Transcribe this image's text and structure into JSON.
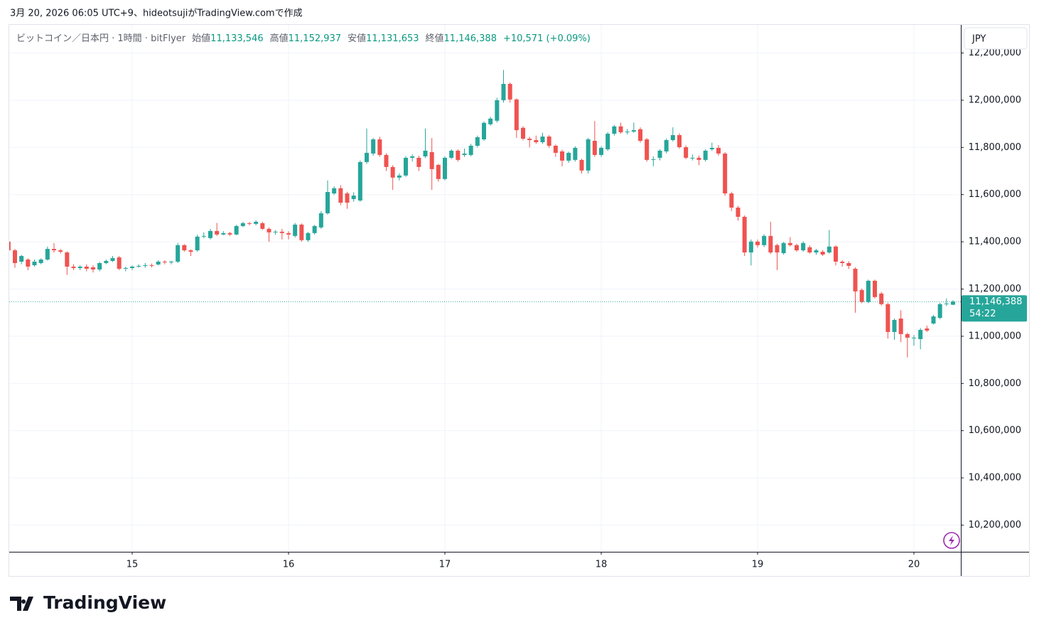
{
  "header": {
    "caption": "3月 20, 2026 06:05 UTC+9、hideotsujiがTradingView.comで作成"
  },
  "footer": {
    "logo": "TradingView"
  },
  "chart_data": {
    "type": "candlestick",
    "symbol": "ビットコイン／日本円 · 1時間 · bitFlyer",
    "legend": [
      {
        "label": "始値",
        "value": "11,133,546"
      },
      {
        "label": "高値",
        "value": "11,152,937"
      },
      {
        "label": "安値",
        "value": "11,131,653"
      },
      {
        "label": "終値",
        "value": "11,146,388"
      }
    ],
    "change": "+10,571 (+0.09%)",
    "currency": "JPY",
    "current_price_label": "11,146,388",
    "countdown": "54:22",
    "up_color": "#26a69a",
    "down_color": "#ef5350",
    "grid": true,
    "ylim": [
      10087000,
      12319000
    ],
    "yticks": [
      {
        "value": 10200000,
        "label": "10,200,000"
      },
      {
        "value": 10400000,
        "label": "10,400,000"
      },
      {
        "value": 10600000,
        "label": "10,600,000"
      },
      {
        "value": 10800000,
        "label": "10,800,000"
      },
      {
        "value": 11000000,
        "label": "11,000,000"
      },
      {
        "value": 11200000,
        "label": "11,200,000"
      },
      {
        "value": 11400000,
        "label": "11,400,000"
      },
      {
        "value": 11600000,
        "label": "11,600,000"
      },
      {
        "value": 11800000,
        "label": "11,800,000"
      },
      {
        "value": 12000000,
        "label": "12,000,000"
      },
      {
        "value": 12200000,
        "label": "12,200,000"
      }
    ],
    "categories": [
      null,
      null,
      null,
      null,
      null,
      null,
      null,
      null,
      null,
      null,
      null,
      null,
      null,
      null,
      null,
      null,
      null,
      null,
      null,
      "15",
      null,
      null,
      null,
      null,
      null,
      null,
      null,
      null,
      null,
      null,
      null,
      null,
      null,
      null,
      null,
      null,
      null,
      null,
      null,
      null,
      null,
      null,
      null,
      "16",
      null,
      null,
      null,
      null,
      null,
      null,
      null,
      null,
      null,
      null,
      null,
      null,
      null,
      null,
      null,
      null,
      null,
      null,
      null,
      null,
      null,
      null,
      null,
      "17",
      null,
      null,
      null,
      null,
      null,
      null,
      null,
      null,
      null,
      null,
      null,
      null,
      null,
      null,
      null,
      null,
      null,
      null,
      null,
      null,
      null,
      null,
      null,
      "18",
      null,
      null,
      null,
      null,
      null,
      null,
      null,
      null,
      null,
      null,
      null,
      null,
      null,
      null,
      null,
      null,
      null,
      null,
      null,
      null,
      null,
      null,
      null,
      "19",
      null,
      null,
      null,
      null,
      null,
      null,
      null,
      null,
      null,
      null,
      null,
      null,
      null,
      null,
      null,
      null,
      null,
      null,
      null,
      null,
      null,
      null,
      null,
      "20",
      null,
      null,
      null,
      null,
      null,
      null
    ],
    "open": [
      11401000,
      11364000,
      11316000,
      11325000,
      11301000,
      11310000,
      11325000,
      11370000,
      11364000,
      11355000,
      11295000,
      11289000,
      11295000,
      11292000,
      11283000,
      11310000,
      11319000,
      11334000,
      11286000,
      11289000,
      11295000,
      11298000,
      11301000,
      11304000,
      11316000,
      11313000,
      11316000,
      11386000,
      11364000,
      11364000,
      11422000,
      11416000,
      11446000,
      11431000,
      11437000,
      11431000,
      11467000,
      11479000,
      11476000,
      11479000,
      11455000,
      11440000,
      11443000,
      11437000,
      11425000,
      11473000,
      11407000,
      11437000,
      11461000,
      11521000,
      11605000,
      11627000,
      11605000,
      11581000,
      11575000,
      11738000,
      11774000,
      11834000,
      11768000,
      11717000,
      11672000,
      11681000,
      11756000,
      11756000,
      11762000,
      11780000,
      11726000,
      11666000,
      11756000,
      11786000,
      11768000,
      11768000,
      11807000,
      11834000,
      11898000,
      11913000,
      12000000,
      12069000,
      12003000,
      11883000,
      11837000,
      11831000,
      11822000,
      11846000,
      11807000,
      11783000,
      11744000,
      11747000,
      11747000,
      11702000,
      11828000,
      11768000,
      11792000,
      11858000,
      11889000,
      11864000,
      11867000,
      11877000,
      11834000,
      11750000,
      11756000,
      11783000,
      11831000,
      11852000,
      11801000,
      11756000,
      11756000,
      11747000,
      11792000,
      11798000,
      11774000,
      11605000,
      11545000,
      11506000,
      11355000,
      11401000,
      11386000,
      11425000,
      11386000,
      11352000,
      11395000,
      11386000,
      11364000,
      11377000,
      11355000,
      11358000,
      11355000,
      11380000,
      11316000,
      11310000,
      11286000,
      11196000,
      11145000,
      11235000,
      11181000,
      11136000,
      11018000,
      11075000,
      11009000,
      10994000,
      10988000,
      11033000,
      11054000,
      11078000,
      11136000,
      11133546
    ],
    "high": [
      11410000,
      11370000,
      11345000,
      11330000,
      11325000,
      11330000,
      11380000,
      11395000,
      11370000,
      11360000,
      11305000,
      11300000,
      11305000,
      11300000,
      11315000,
      11325000,
      11340000,
      11340000,
      11295000,
      11300000,
      11305000,
      11310000,
      11308000,
      11322000,
      11322000,
      11320000,
      11395000,
      11390000,
      11368000,
      11430000,
      11440000,
      11455000,
      11480000,
      11445000,
      11442000,
      11472000,
      11485000,
      11484000,
      11492000,
      11485000,
      11460000,
      11450000,
      11455000,
      11445000,
      11480000,
      11478000,
      11442000,
      11472000,
      11530000,
      11660000,
      11635000,
      11640000,
      11612000,
      11610000,
      11745000,
      11880000,
      11840000,
      11845000,
      11775000,
      11725000,
      11690000,
      11762000,
      11770000,
      11765000,
      11880000,
      11840000,
      11730000,
      11762000,
      11792000,
      11792000,
      11795000,
      11815000,
      11850000,
      11910000,
      11930000,
      12010000,
      12128000,
      12075000,
      12008000,
      11890000,
      11845000,
      11850000,
      11862000,
      11852000,
      11812000,
      11790000,
      11782000,
      11805000,
      11752000,
      11840000,
      11912000,
      11805000,
      11865000,
      11895000,
      11905000,
      11878000,
      11905000,
      11885000,
      11840000,
      11762000,
      11792000,
      11838000,
      11885000,
      11860000,
      11808000,
      11770000,
      11765000,
      11792000,
      11820000,
      11810000,
      11780000,
      11612000,
      11552000,
      11512000,
      11410000,
      11410000,
      11432000,
      11485000,
      11392000,
      11400000,
      11420000,
      11392000,
      11402000,
      11385000,
      11370000,
      11365000,
      11450000,
      11385000,
      11322000,
      11318000,
      11292000,
      11202000,
      11240000,
      11240000,
      11188000,
      11142000,
      11075000,
      11110000,
      11015000,
      11005000,
      11035000,
      11045000,
      11090000,
      11142000,
      11160000,
      11152937
    ],
    "low": [
      11355000,
      11290000,
      11305000,
      11280000,
      11295000,
      11305000,
      11320000,
      11355000,
      11350000,
      11260000,
      11280000,
      11280000,
      11275000,
      11270000,
      11275000,
      11305000,
      11315000,
      11280000,
      11275000,
      11280000,
      11290000,
      11290000,
      11292000,
      11300000,
      11305000,
      11305000,
      11310000,
      11358000,
      11340000,
      11358000,
      11415000,
      11410000,
      11425000,
      11428000,
      11425000,
      11428000,
      11462000,
      11470000,
      11470000,
      11450000,
      11400000,
      11430000,
      11410000,
      11410000,
      11418000,
      11400000,
      11400000,
      11430000,
      11455000,
      11515000,
      11598000,
      11555000,
      11540000,
      11570000,
      11570000,
      11730000,
      11765000,
      11760000,
      11700000,
      11620000,
      11660000,
      11675000,
      11740000,
      11700000,
      11755000,
      11620000,
      11655000,
      11660000,
      11750000,
      11740000,
      11760000,
      11762000,
      11800000,
      11828000,
      11892000,
      11905000,
      11990000,
      11990000,
      11840000,
      11830000,
      11800000,
      11815000,
      11815000,
      11798000,
      11760000,
      11720000,
      11735000,
      11740000,
      11690000,
      11690000,
      11760000,
      11760000,
      11785000,
      11850000,
      11858000,
      11855000,
      11862000,
      11820000,
      11740000,
      11720000,
      11745000,
      11775000,
      11825000,
      11795000,
      11750000,
      11745000,
      11725000,
      11740000,
      11785000,
      11765000,
      11595000,
      11530000,
      11490000,
      11340000,
      11300000,
      11375000,
      11378000,
      11348000,
      11280000,
      11345000,
      11380000,
      11358000,
      11358000,
      11350000,
      11345000,
      11340000,
      11350000,
      11300000,
      11295000,
      11285000,
      11100000,
      11140000,
      11140000,
      11160000,
      11130000,
      10990000,
      10985000,
      10975000,
      10910000,
      10960000,
      10945000,
      11018000,
      11050000,
      11072000,
      11128000,
      11131653
    ],
    "close": [
      11364000,
      11310000,
      11340000,
      11295000,
      11316000,
      11325000,
      11370000,
      11364000,
      11358000,
      11295000,
      11289000,
      11295000,
      11286000,
      11283000,
      11310000,
      11319000,
      11331000,
      11286000,
      11289000,
      11295000,
      11298000,
      11301000,
      11298000,
      11316000,
      11313000,
      11316000,
      11386000,
      11364000,
      11358000,
      11422000,
      11425000,
      11446000,
      11431000,
      11437000,
      11431000,
      11467000,
      11479000,
      11476000,
      11485000,
      11455000,
      11440000,
      11443000,
      11437000,
      11431000,
      11473000,
      11407000,
      11437000,
      11467000,
      11521000,
      11611000,
      11627000,
      11566000,
      11566000,
      11596000,
      11738000,
      11777000,
      11834000,
      11768000,
      11717000,
      11672000,
      11681000,
      11756000,
      11762000,
      11717000,
      11786000,
      11708000,
      11666000,
      11756000,
      11786000,
      11747000,
      11774000,
      11807000,
      11843000,
      11904000,
      11922000,
      12000000,
      12069000,
      12003000,
      11873000,
      11837000,
      11831000,
      11822000,
      11846000,
      11807000,
      11777000,
      11744000,
      11777000,
      11798000,
      11702000,
      11834000,
      11768000,
      11798000,
      11858000,
      11889000,
      11864000,
      11867000,
      11873000,
      11828000,
      11747000,
      11750000,
      11786000,
      11831000,
      11852000,
      11801000,
      11756000,
      11756000,
      11747000,
      11786000,
      11798000,
      11774000,
      11605000,
      11545000,
      11506000,
      11355000,
      11401000,
      11386000,
      11425000,
      11355000,
      11355000,
      11395000,
      11386000,
      11364000,
      11395000,
      11355000,
      11364000,
      11346000,
      11380000,
      11316000,
      11310000,
      11298000,
      11190000,
      11145000,
      11235000,
      11166000,
      11136000,
      11018000,
      11069000,
      11009000,
      10994000,
      10994000,
      11027000,
      11024000,
      11084000,
      11136000,
      11139000,
      11146388
    ]
  }
}
